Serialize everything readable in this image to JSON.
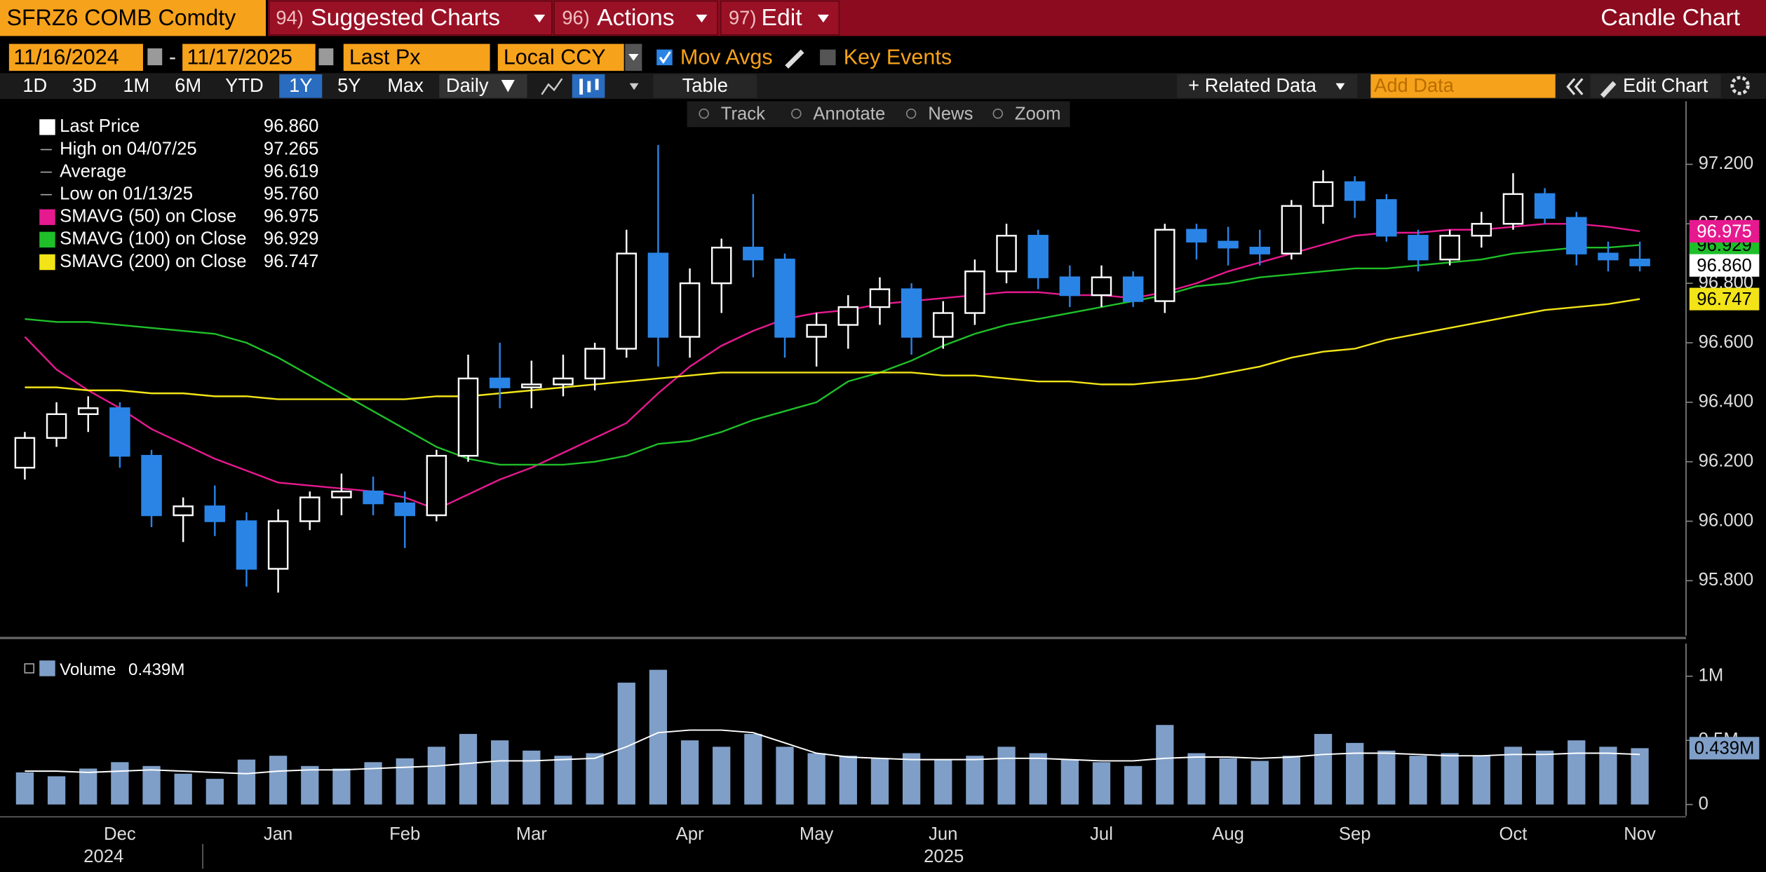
{
  "ui": {
    "security": "SFRZ6 COMB Comdty",
    "menu": [
      {
        "num": "94)",
        "label": "Suggested Charts"
      },
      {
        "num": "96)",
        "label": "Actions"
      },
      {
        "num": "97)",
        "label": "Edit"
      }
    ],
    "window_title": "Candle Chart",
    "start_date": "11/16/2024",
    "date_sep": "-",
    "end_date": "11/17/2025",
    "field": "Last Px",
    "currency": "Local CCY",
    "mov_avgs": "Mov Avgs",
    "key_events": "Key Events",
    "periods": [
      "1D",
      "3D",
      "1M",
      "6M",
      "YTD",
      "1Y",
      "5Y",
      "Max"
    ],
    "frequency": "Daily",
    "table": "Table",
    "related_data": "+ Related Data",
    "add_data": "Add Data",
    "edit_chart": "Edit Chart",
    "tools": [
      "Track",
      "Annotate",
      "News",
      "Zoom"
    ]
  },
  "chart_data": {
    "type": "candlestick",
    "categories": [
      null,
      null,
      null,
      "Dec",
      null,
      null,
      null,
      null,
      "Jan",
      null,
      null,
      null,
      "Feb",
      null,
      null,
      null,
      "Mar",
      null,
      null,
      null,
      null,
      "Apr",
      null,
      null,
      null,
      "May",
      null,
      null,
      null,
      "Jun",
      null,
      null,
      null,
      null,
      "Jul",
      null,
      null,
      null,
      "Aug",
      null,
      null,
      null,
      "Sep",
      null,
      null,
      null,
      null,
      "Oct",
      null,
      null,
      null,
      "Nov"
    ],
    "years": [
      "2024",
      "2025"
    ],
    "open": [
      96.18,
      96.28,
      96.36,
      96.38,
      96.22,
      96.02,
      96.05,
      96.0,
      95.84,
      96.0,
      96.08,
      96.1,
      96.06,
      96.02,
      96.22,
      96.48,
      96.45,
      96.46,
      96.48,
      96.58,
      96.9,
      96.62,
      96.8,
      96.92,
      96.88,
      96.62,
      96.66,
      96.72,
      96.78,
      96.62,
      96.7,
      96.84,
      96.96,
      96.82,
      96.76,
      96.82,
      96.74,
      96.98,
      96.94,
      96.92,
      96.9,
      97.06,
      97.14,
      97.08,
      96.96,
      96.88,
      96.96,
      97.0,
      97.1,
      97.02,
      96.9,
      96.88
    ],
    "high": [
      96.3,
      96.4,
      96.42,
      96.4,
      96.24,
      96.08,
      96.12,
      96.03,
      96.04,
      96.1,
      96.16,
      96.15,
      96.1,
      96.24,
      96.56,
      96.6,
      96.54,
      96.56,
      96.6,
      96.98,
      97.265,
      96.85,
      96.95,
      97.1,
      96.9,
      96.7,
      96.76,
      96.82,
      96.8,
      96.74,
      96.88,
      97.0,
      96.98,
      96.86,
      96.86,
      96.84,
      97.0,
      97.0,
      96.99,
      96.98,
      97.08,
      97.18,
      97.16,
      97.1,
      96.98,
      96.98,
      97.04,
      97.17,
      97.12,
      97.04,
      96.94,
      96.94
    ],
    "low": [
      96.14,
      96.25,
      96.3,
      96.18,
      95.98,
      95.93,
      95.95,
      95.78,
      95.76,
      95.97,
      96.02,
      96.02,
      95.91,
      96.0,
      96.2,
      96.38,
      96.38,
      96.42,
      96.44,
      96.55,
      96.52,
      96.55,
      96.7,
      96.82,
      96.55,
      96.52,
      96.58,
      96.66,
      96.56,
      96.58,
      96.66,
      96.8,
      96.78,
      96.72,
      96.72,
      96.72,
      96.7,
      96.88,
      96.86,
      96.86,
      96.88,
      97.0,
      97.02,
      96.94,
      96.84,
      96.86,
      96.92,
      96.98,
      97.0,
      96.86,
      96.84,
      96.84
    ],
    "close": [
      96.28,
      96.36,
      96.38,
      96.22,
      96.02,
      96.05,
      96.0,
      95.84,
      96.0,
      96.08,
      96.1,
      96.06,
      96.02,
      96.22,
      96.48,
      96.45,
      96.46,
      96.48,
      96.58,
      96.9,
      96.62,
      96.8,
      96.92,
      96.88,
      96.62,
      96.66,
      96.72,
      96.78,
      96.62,
      96.7,
      96.84,
      96.96,
      96.82,
      96.76,
      96.82,
      96.74,
      96.98,
      96.94,
      96.92,
      96.9,
      97.06,
      97.14,
      97.08,
      96.96,
      96.88,
      96.96,
      97.0,
      97.1,
      97.02,
      96.9,
      96.88,
      96.86
    ],
    "up_color": "#ffffff",
    "down_color": "#2a84e6",
    "legend_stats": [
      {
        "label": "Last Price",
        "value": "96.860"
      },
      {
        "label": "High on 04/07/25",
        "value": "97.265"
      },
      {
        "label": "Average",
        "value": "96.619"
      },
      {
        "label": "Low on 01/13/25",
        "value": "95.760"
      }
    ],
    "series": [
      {
        "name": "SMAVG (50) on Close",
        "last": "96.975",
        "color": "#e6198f",
        "values": [
          96.62,
          96.51,
          96.44,
          96.38,
          96.31,
          96.26,
          96.21,
          96.17,
          96.13,
          96.12,
          96.11,
          96.1,
          96.08,
          96.04,
          96.09,
          96.14,
          96.18,
          96.23,
          96.28,
          96.33,
          96.43,
          96.52,
          96.59,
          96.64,
          96.68,
          96.7,
          96.71,
          96.73,
          96.74,
          96.75,
          96.76,
          96.77,
          96.77,
          96.76,
          96.76,
          96.75,
          96.77,
          96.8,
          96.84,
          96.87,
          96.9,
          96.93,
          96.96,
          96.97,
          96.97,
          96.98,
          96.98,
          96.99,
          97.0,
          97.0,
          96.99,
          96.975
        ]
      },
      {
        "name": "SMAVG (100) on Close",
        "last": "96.929",
        "color": "#1fbf2a",
        "values": [
          96.68,
          96.67,
          96.67,
          96.66,
          96.65,
          96.64,
          96.63,
          96.6,
          96.55,
          96.49,
          96.43,
          96.37,
          96.31,
          96.25,
          96.21,
          96.19,
          96.19,
          96.19,
          96.2,
          96.22,
          96.26,
          96.27,
          96.3,
          96.34,
          96.37,
          96.4,
          96.47,
          96.5,
          96.54,
          96.59,
          96.63,
          96.66,
          96.68,
          96.7,
          96.72,
          96.74,
          96.76,
          96.79,
          96.8,
          96.82,
          96.83,
          96.84,
          96.85,
          96.85,
          96.86,
          96.87,
          96.88,
          96.9,
          96.91,
          96.92,
          96.92,
          96.929
        ]
      },
      {
        "name": "SMAVG (200) on Close",
        "last": "96.747",
        "color": "#f2e418",
        "values": [
          96.45,
          96.45,
          96.44,
          96.44,
          96.43,
          96.43,
          96.42,
          96.42,
          96.41,
          96.41,
          96.41,
          96.41,
          96.41,
          96.42,
          96.42,
          96.43,
          96.44,
          96.45,
          96.46,
          96.47,
          96.48,
          96.49,
          96.5,
          96.5,
          96.5,
          96.5,
          96.5,
          96.5,
          96.5,
          96.49,
          96.49,
          96.48,
          96.47,
          96.47,
          96.46,
          96.46,
          96.47,
          96.48,
          96.5,
          96.52,
          96.55,
          96.57,
          96.58,
          96.61,
          96.63,
          96.65,
          96.67,
          96.69,
          96.71,
          96.72,
          96.73,
          96.747
        ]
      }
    ],
    "ylim": [
      95.615,
      97.412
    ],
    "yticks": [
      {
        "value": 95.8,
        "label": "95.800"
      },
      {
        "value": 96.0,
        "label": "96.000"
      },
      {
        "value": 96.2,
        "label": "96.200"
      },
      {
        "value": 96.4,
        "label": "96.400"
      },
      {
        "value": 96.6,
        "label": "96.600"
      },
      {
        "value": 96.8,
        "label": "96.800"
      },
      {
        "value": 97.0,
        "label": "97.000"
      },
      {
        "value": 97.2,
        "label": "97.200"
      }
    ],
    "volume": {
      "name": "Volume",
      "last_label": "0.439M",
      "color": "#7f9fc8",
      "ma_color": "#ffffff",
      "values": [
        250000,
        220000,
        280000,
        330000,
        300000,
        240000,
        200000,
        350000,
        380000,
        300000,
        280000,
        330000,
        360000,
        450000,
        550000,
        500000,
        420000,
        380000,
        400000,
        950000,
        1050000,
        500000,
        450000,
        550000,
        450000,
        400000,
        380000,
        360000,
        400000,
        350000,
        380000,
        450000,
        400000,
        350000,
        330000,
        300000,
        620000,
        400000,
        360000,
        340000,
        380000,
        550000,
        480000,
        420000,
        380000,
        400000,
        380000,
        450000,
        420000,
        500000,
        450000,
        439000
      ],
      "ma": [
        260000,
        260000,
        250000,
        260000,
        270000,
        260000,
        250000,
        240000,
        260000,
        270000,
        270000,
        280000,
        290000,
        300000,
        320000,
        340000,
        340000,
        350000,
        360000,
        450000,
        560000,
        580000,
        580000,
        560000,
        480000,
        400000,
        370000,
        360000,
        350000,
        350000,
        350000,
        360000,
        360000,
        350000,
        340000,
        340000,
        360000,
        370000,
        370000,
        360000,
        370000,
        390000,
        400000,
        400000,
        390000,
        380000,
        380000,
        390000,
        390000,
        400000,
        400000,
        390000
      ],
      "ylim": [
        0,
        1228000
      ],
      "yticks": [
        0,
        {
          "value": 500000,
          "label": "0.5M"
        },
        {
          "value": 1000000,
          "label": "1M"
        }
      ]
    }
  }
}
